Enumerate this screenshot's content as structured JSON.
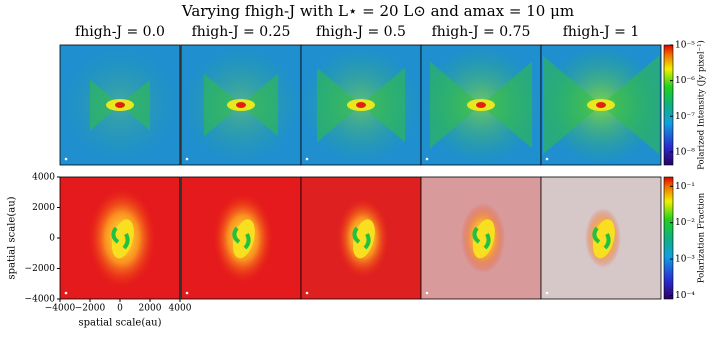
{
  "chart_data": {
    "type": "image-grid",
    "title": "Varying fhigh-J with L⋆ = 20 L⊙ and amax = 10 μm",
    "columns": [
      "fhigh-J = 0.0",
      "fhigh-J = 0.25",
      "fhigh-J = 0.5",
      "fhigh-J = 0.75",
      "fhigh-J = 1"
    ],
    "xlabel": "spatial scale(au)",
    "ylabel": "spatial scale(au)",
    "xlim": [
      -4000,
      4000
    ],
    "ylim": [
      -4000,
      4000
    ],
    "xticks": [
      {
        "value": -4000,
        "label": "−4000"
      },
      {
        "value": -2000,
        "label": "−2000"
      },
      0,
      2000,
      4000
    ],
    "yticks": [
      {
        "value": -4000,
        "label": "−4000"
      },
      {
        "value": -2000,
        "label": "−2000"
      },
      0,
      2000,
      4000
    ],
    "colorbars": [
      {
        "label": "Polarized Intensity (Jy pixel⁻¹)",
        "log": true,
        "clim": [
          4.3e-09,
          1e-05
        ],
        "ticks": [
          {
            "value": 1e-05,
            "label": "10⁻⁵"
          },
          {
            "value": 1e-06,
            "label": "10⁻⁶"
          },
          {
            "value": 1e-07,
            "label": "10⁻⁷"
          },
          {
            "value": 1e-08,
            "label": "10⁻⁸"
          }
        ]
      },
      {
        "label": "Polarization Fraction",
        "log": true,
        "clim": [
          8e-05,
          0.18
        ],
        "ticks": [
          {
            "value": 0.1,
            "label": "10⁻¹"
          },
          {
            "value": 0.01,
            "label": "10⁻²"
          },
          {
            "value": 0.001,
            "label": "10⁻³"
          },
          {
            "value": 0.0001,
            "label": "10⁻⁴"
          }
        ]
      }
    ]
  }
}
